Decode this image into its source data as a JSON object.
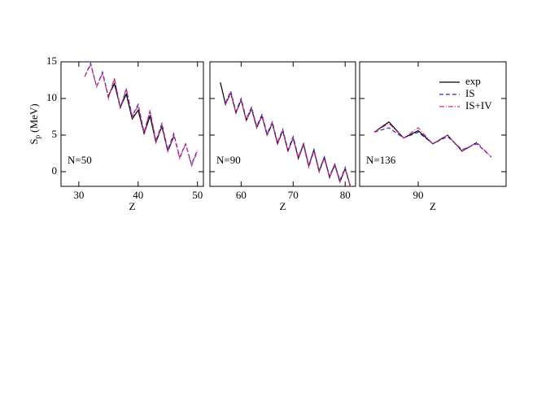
{
  "chart_data": [
    {
      "type": "line",
      "ylabel": {
        "symbol": "S",
        "subscript": "p",
        "unit": "(MeV)"
      },
      "xlabel": "Z",
      "annotation": "N=50",
      "x": [
        31,
        32,
        33,
        34,
        35,
        36,
        37,
        38,
        39,
        40,
        41,
        42,
        43,
        44,
        45,
        46,
        47,
        48,
        49,
        50
      ],
      "xlim": [
        27,
        51
      ],
      "xticks": [
        30,
        40,
        50
      ],
      "ylim": [
        -2,
        15
      ],
      "yticks": [
        0,
        5,
        10,
        15
      ],
      "series": [
        {
          "name": "exp",
          "color": "#000000",
          "style": "solid",
          "values": [
            null,
            null,
            null,
            null,
            10.4,
            12.0,
            8.8,
            10.6,
            7.2,
            8.4,
            5.2,
            7.6,
            4.0,
            6.2,
            2.8,
            4.8,
            null,
            null,
            null,
            null
          ]
        },
        {
          "name": "IS",
          "color": "#2b2bd6",
          "style": "dashed",
          "values": [
            13.0,
            14.8,
            11.6,
            13.6,
            10.2,
            12.6,
            8.8,
            11.2,
            7.6,
            9.2,
            5.4,
            8.2,
            4.2,
            6.6,
            3.0,
            5.2,
            2.0,
            3.8,
            1.0,
            3.0
          ]
        },
        {
          "name": "IS+IV",
          "color": "#d62b6e",
          "style": "dashdot",
          "values": [
            13.0,
            14.6,
            11.6,
            13.4,
            10.0,
            12.8,
            8.6,
            11.4,
            7.4,
            9.0,
            5.2,
            8.4,
            4.0,
            6.4,
            2.8,
            5.0,
            1.8,
            3.8,
            0.8,
            2.8
          ]
        }
      ]
    },
    {
      "type": "line",
      "xlabel": "Z",
      "annotation": "N=90",
      "x": [
        56,
        57,
        58,
        59,
        60,
        61,
        62,
        63,
        64,
        65,
        66,
        67,
        68,
        69,
        70,
        71,
        72,
        73,
        74,
        75,
        76,
        77,
        78,
        79,
        80,
        81
      ],
      "xlim": [
        54,
        82
      ],
      "xticks": [
        60,
        70,
        80
      ],
      "ylim": [
        -2,
        15
      ],
      "yticks": [
        0,
        5,
        10,
        15
      ],
      "series": [
        {
          "name": "exp",
          "color": "#000000",
          "style": "solid",
          "values": [
            12.2,
            9.2,
            10.8,
            8.0,
            9.8,
            7.0,
            8.6,
            6.0,
            7.6,
            5.0,
            6.6,
            3.8,
            5.6,
            2.8,
            4.6,
            1.8,
            3.8,
            0.8,
            3.0,
            0.0,
            2.0,
            -0.8,
            1.0,
            -1.4,
            0.4,
            -2.0
          ]
        },
        {
          "name": "IS",
          "color": "#2b2bd6",
          "style": "dashed",
          "values": [
            null,
            9.4,
            11.0,
            8.2,
            10.0,
            7.2,
            8.8,
            6.2,
            7.8,
            5.2,
            6.8,
            4.0,
            5.8,
            3.0,
            4.8,
            2.0,
            3.8,
            0.8,
            3.0,
            0.2,
            2.0,
            -0.6,
            1.0,
            -1.2,
            0.6,
            -2.0
          ]
        },
        {
          "name": "IS+IV",
          "color": "#d62b6e",
          "style": "dashdot",
          "values": [
            null,
            9.2,
            10.8,
            8.0,
            9.8,
            7.0,
            8.6,
            6.0,
            7.6,
            5.0,
            6.6,
            3.8,
            5.6,
            2.8,
            4.6,
            1.8,
            3.6,
            0.6,
            2.8,
            0.0,
            1.8,
            -0.8,
            0.8,
            -1.4,
            0.4,
            -2.0
          ]
        }
      ]
    },
    {
      "type": "line",
      "xlabel": "Z",
      "annotation": "N=136",
      "legend": "upper right",
      "x": [
        84,
        86,
        88,
        90,
        92,
        94,
        96,
        98,
        100
      ],
      "xlim": [
        82,
        102
      ],
      "xticks": [
        90
      ],
      "ylim": [
        -2,
        15
      ],
      "yticks": [
        0,
        5,
        10,
        15
      ],
      "series": [
        {
          "name": "exp",
          "color": "#000000",
          "style": "solid",
          "values": [
            5.4,
            6.8,
            4.6,
            5.6,
            3.8,
            5.0,
            2.8,
            4.0,
            null
          ]
        },
        {
          "name": "IS",
          "color": "#2b2bd6",
          "style": "dashed",
          "values": [
            5.4,
            6.0,
            4.6,
            5.4,
            3.8,
            4.8,
            3.0,
            3.8,
            2.0
          ]
        },
        {
          "name": "IS+IV",
          "color": "#d62b6e",
          "style": "dashdot",
          "values": [
            5.4,
            6.6,
            4.6,
            6.0,
            3.8,
            5.0,
            2.8,
            4.0,
            2.0
          ]
        }
      ]
    }
  ]
}
